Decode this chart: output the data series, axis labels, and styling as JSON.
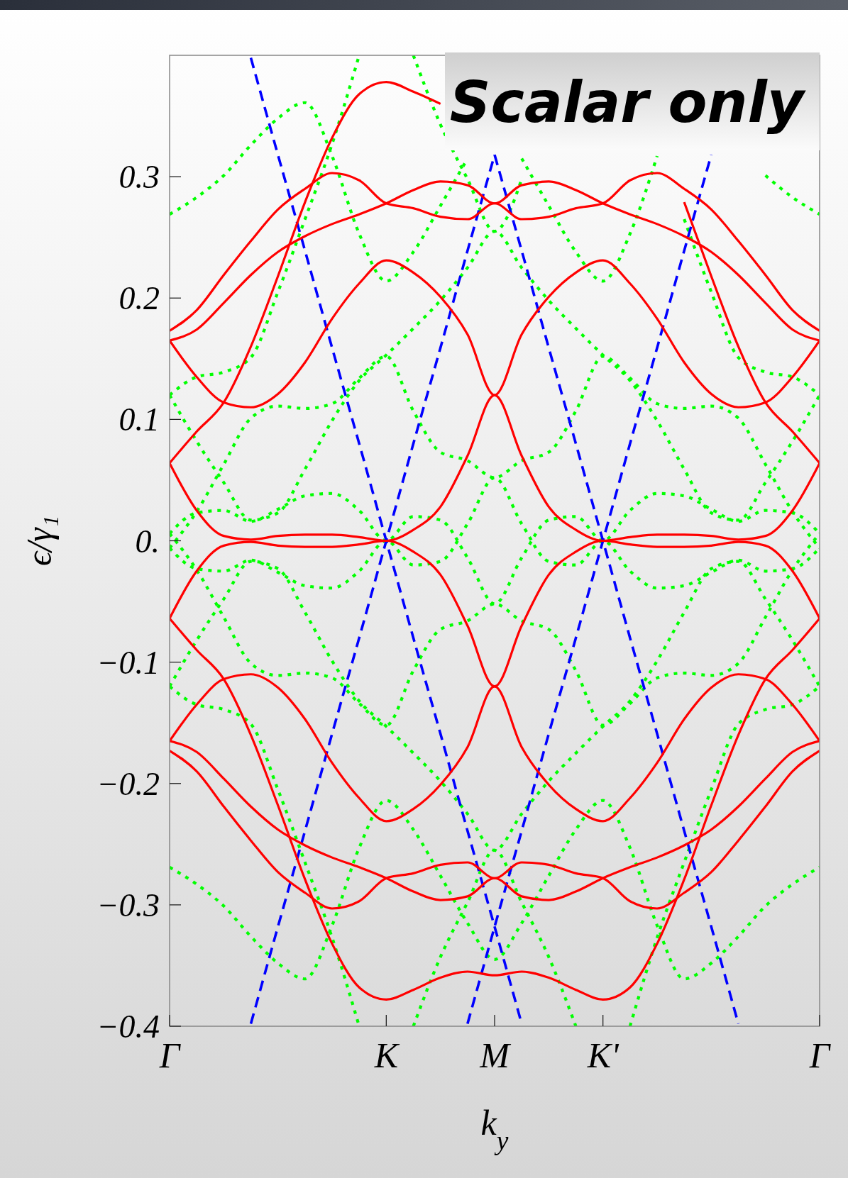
{
  "chart_data": {
    "type": "line",
    "title": "Scalar only",
    "xlabel": "k$_{y}$",
    "ylabel": "ϵ/γ₁",
    "categories": [
      "Γ",
      null,
      null,
      null,
      null,
      null,
      null,
      null,
      "K",
      null,
      null,
      null,
      "M",
      null,
      null,
      null,
      "K'",
      null,
      null,
      null,
      null,
      null,
      null,
      null,
      "Γ"
    ],
    "ylim": [
      -0.4,
      0.4
    ],
    "yticks": [
      {
        "value": -0.4,
        "label": "−0.4"
      },
      {
        "value": -0.3,
        "label": "−0.3"
      },
      {
        "value": -0.2,
        "label": "−0.2"
      },
      {
        "value": -0.1,
        "label": "−0.1"
      },
      {
        "value": 0,
        "label": "0."
      },
      0.3,
      0.2,
      0.1
    ],
    "series": [
      {
        "color": "#00ff00",
        "line_style": "dotted",
        "values": [
          0.269,
          0.283,
          0.301,
          0.326,
          0.348,
          0.361,
          0.317,
          0.253,
          0.214,
          0.238,
          0.276,
          0.315,
          null,
          0.315,
          0.276,
          0.238,
          0.214,
          0.253,
          0.317,
          null,
          null,
          null,
          0.301,
          0.283,
          0.269
        ]
      },
      {
        "color": "#00ff00",
        "line_style": "dotted",
        "values": [
          -0.269,
          -0.283,
          -0.301,
          -0.326,
          -0.348,
          -0.361,
          -0.317,
          -0.253,
          -0.214,
          -0.238,
          -0.276,
          -0.315,
          -0.345,
          -0.315,
          -0.276,
          -0.238,
          -0.214,
          -0.253,
          -0.317,
          -0.361,
          -0.348,
          -0.326,
          -0.301,
          -0.283,
          -0.269
        ]
      },
      {
        "color": "#00ff00",
        "line_style": "dotted",
        "values": [
          0.12,
          0.135,
          0.139,
          0.151,
          0.205,
          0.265,
          0.327,
          0.4,
          null,
          null,
          null,
          null,
          null,
          null,
          null,
          null,
          null,
          null,
          null,
          null,
          null,
          null,
          null,
          null,
          null
        ]
      },
      {
        "color": "#00ff00",
        "line_style": "dotted",
        "values": [
          null,
          null,
          null,
          null,
          null,
          null,
          null,
          null,
          null,
          null,
          null,
          null,
          null,
          null,
          null,
          null,
          null,
          null,
          null,
          0.265,
          0.205,
          0.151,
          0.139,
          0.135,
          0.12
        ]
      },
      {
        "color": "#00ff00",
        "line_style": "dotted",
        "values": [
          -0.12,
          -0.135,
          -0.139,
          -0.151,
          -0.205,
          -0.265,
          -0.327,
          -0.4,
          null,
          null,
          null,
          null,
          null,
          null,
          null,
          null,
          null,
          null,
          null,
          null,
          null,
          null,
          null,
          null,
          null
        ]
      },
      {
        "color": "#00ff00",
        "line_style": "dotted",
        "values": [
          null,
          null,
          null,
          null,
          null,
          null,
          null,
          null,
          null,
          null,
          null,
          null,
          null,
          null,
          null,
          null,
          null,
          -0.4,
          -0.327,
          -0.265,
          -0.205,
          -0.151,
          -0.139,
          -0.135,
          -0.12
        ]
      },
      {
        "color": "#00ff00",
        "line_style": "dotted",
        "values": [
          null,
          null,
          null,
          null,
          null,
          null,
          null,
          null,
          null,
          0.4,
          0.343,
          0.298,
          0.255,
          0.298,
          null,
          null,
          null,
          null,
          null,
          null,
          null,
          null,
          null,
          null,
          null
        ]
      },
      {
        "color": "#00ff00",
        "line_style": "dotted",
        "values": [
          null,
          null,
          null,
          null,
          null,
          null,
          null,
          null,
          null,
          -0.4,
          -0.343,
          -0.298,
          -0.255,
          -0.298,
          -0.343,
          -0.4,
          null,
          null,
          null,
          null,
          null,
          null,
          null,
          null,
          null
        ]
      },
      {
        "color": "#00ff00",
        "line_style": "dotted",
        "values": [
          -0.006,
          0.024,
          0.063,
          0.101,
          0.111,
          0.109,
          0.113,
          0.134,
          0.152,
          0.107,
          0.073,
          0.066,
          0.052,
          0.066,
          0.073,
          0.107,
          0.152,
          0.134,
          0.113,
          0.109,
          0.111,
          0.101,
          0.063,
          0.024,
          -0.006
        ]
      },
      {
        "color": "#00ff00",
        "line_style": "dotted",
        "values": [
          0.006,
          -0.024,
          -0.063,
          -0.101,
          -0.111,
          -0.109,
          -0.113,
          -0.134,
          -0.152,
          -0.107,
          -0.073,
          -0.066,
          -0.052,
          -0.066,
          -0.073,
          -0.107,
          -0.152,
          -0.134,
          -0.113,
          -0.109,
          -0.111,
          -0.101,
          -0.063,
          -0.024,
          0.006
        ]
      },
      {
        "color": "#00ff00",
        "line_style": "dotted",
        "values": [
          0.12,
          0.082,
          0.048,
          0.017,
          0.023,
          0.059,
          0.099,
          0.132,
          0.153,
          0.175,
          0.198,
          0.225,
          0.255,
          0.225,
          0.198,
          0.175,
          0.153,
          0.132,
          0.099,
          0.059,
          0.023,
          0.017,
          0.048,
          0.082,
          0.12
        ]
      },
      {
        "color": "#00ff00",
        "line_style": "dotted",
        "values": [
          -0.12,
          -0.082,
          -0.048,
          -0.017,
          -0.023,
          -0.059,
          -0.099,
          -0.132,
          -0.153,
          -0.175,
          -0.198,
          -0.225,
          -0.255,
          -0.225,
          -0.198,
          -0.175,
          -0.153,
          -0.132,
          -0.099,
          -0.059,
          -0.023,
          -0.017,
          -0.048,
          -0.082,
          -0.12
        ]
      },
      {
        "color": "#00ff00",
        "line_style": "dotted",
        "values": [
          0.006,
          0.023,
          0.025,
          0.016,
          0.026,
          0.037,
          0.039,
          0.025,
          0,
          0.02,
          0.017,
          -0.014,
          -0.052,
          -0.014,
          0.017,
          0.02,
          0,
          0.025,
          0.039,
          0.037,
          0.026,
          0.016,
          0.025,
          0.023,
          0.006
        ]
      },
      {
        "color": "#00ff00",
        "line_style": "dotted",
        "values": [
          -0.006,
          -0.023,
          -0.025,
          -0.016,
          -0.026,
          -0.037,
          -0.039,
          -0.025,
          0,
          -0.02,
          -0.017,
          0.014,
          0.052,
          0.014,
          -0.017,
          -0.02,
          0,
          -0.025,
          -0.039,
          -0.037,
          -0.026,
          -0.016,
          -0.025,
          -0.023,
          -0.006
        ]
      },
      {
        "color": "#0000ff",
        "line_style": "dashed",
        "values": [
          null,
          null,
          null,
          0.398,
          0.318,
          0.239,
          0.159,
          0.08,
          0,
          -0.08,
          -0.159,
          -0.239,
          -0.318,
          -0.398,
          null,
          null,
          null,
          null,
          null,
          null,
          null,
          null,
          null,
          null,
          null
        ]
      },
      {
        "color": "#0000ff",
        "line_style": "dashed",
        "values": [
          null,
          null,
          null,
          -0.398,
          -0.318,
          -0.239,
          -0.159,
          -0.08,
          0,
          0.08,
          0.159,
          0.239,
          0.318,
          null,
          null,
          null,
          null,
          null,
          null,
          null,
          null,
          null,
          null,
          null,
          null
        ]
      },
      {
        "color": "#0000ff",
        "line_style": "dashed",
        "values": [
          null,
          null,
          null,
          null,
          null,
          null,
          null,
          null,
          null,
          null,
          null,
          null,
          0.318,
          0.239,
          0.159,
          0.08,
          0,
          -0.08,
          -0.159,
          -0.239,
          -0.318,
          -0.398,
          null,
          null,
          null
        ]
      },
      {
        "color": "#0000ff",
        "line_style": "dashed",
        "values": [
          null,
          null,
          null,
          null,
          null,
          null,
          null,
          null,
          null,
          null,
          null,
          -0.398,
          -0.318,
          -0.239,
          -0.159,
          -0.08,
          0,
          0.08,
          0.159,
          0.239,
          0.318,
          null,
          null,
          null,
          null
        ]
      },
      {
        "color": "#ff0000",
        "line_style": "solid",
        "values": [
          0.165,
          0.135,
          0.114,
          0.11,
          0.121,
          0.147,
          0.183,
          0.212,
          0.231,
          0.221,
          0.201,
          0.17,
          0.12,
          0.17,
          0.201,
          0.221,
          0.231,
          0.212,
          0.183,
          0.147,
          0.121,
          0.11,
          0.114,
          0.135,
          0.165
        ]
      },
      {
        "color": "#ff0000",
        "line_style": "solid",
        "values": [
          -0.165,
          -0.135,
          -0.114,
          -0.11,
          -0.121,
          -0.147,
          -0.183,
          -0.212,
          -0.231,
          -0.221,
          -0.201,
          -0.17,
          -0.12,
          -0.17,
          -0.201,
          -0.221,
          -0.231,
          -0.212,
          -0.183,
          -0.147,
          -0.121,
          -0.11,
          -0.114,
          -0.135,
          -0.165
        ]
      },
      {
        "color": "#ff0000",
        "line_style": "solid",
        "values": [
          0.064,
          0.025,
          0.004,
          0.001,
          0.004,
          0.005,
          0.005,
          0.003,
          0,
          0.009,
          0.028,
          0.07,
          0.12,
          0.07,
          0.028,
          0.009,
          0,
          0.003,
          0.005,
          0.005,
          0.004,
          0.001,
          0.004,
          0.025,
          0.064
        ]
      },
      {
        "color": "#ff0000",
        "line_style": "solid",
        "values": [
          -0.064,
          -0.025,
          -0.004,
          -0.001,
          -0.004,
          -0.005,
          -0.005,
          -0.003,
          0,
          -0.009,
          -0.028,
          -0.07,
          -0.12,
          -0.07,
          -0.028,
          -0.009,
          0,
          -0.003,
          -0.005,
          -0.005,
          -0.004,
          -0.001,
          -0.004,
          -0.025,
          -0.064
        ]
      },
      {
        "color": "#ff0000",
        "line_style": "solid",
        "values": [
          0.064,
          0.09,
          0.114,
          0.16,
          0.218,
          0.279,
          0.332,
          0.368,
          0.378,
          0.37,
          0.36,
          null,
          null,
          null,
          null,
          null,
          null,
          null,
          null,
          0.279,
          0.218,
          0.16,
          0.114,
          0.09,
          0.064
        ]
      },
      {
        "color": "#ff0000",
        "line_style": "solid",
        "values": [
          -0.064,
          -0.09,
          -0.114,
          -0.16,
          -0.218,
          -0.279,
          -0.332,
          -0.368,
          -0.378,
          -0.37,
          -0.36,
          -0.355,
          -0.358,
          -0.355,
          -0.36,
          -0.37,
          -0.378,
          -0.368,
          -0.332,
          -0.279,
          -0.218,
          -0.16,
          -0.114,
          -0.09,
          -0.064
        ]
      },
      {
        "color": "#ff0000",
        "line_style": "solid",
        "values": [
          0.173,
          0.19,
          0.219,
          0.247,
          0.273,
          0.29,
          0.303,
          0.297,
          0.278,
          0.274,
          0.267,
          0.265,
          0.278,
          0.265,
          0.267,
          0.274,
          0.278,
          0.297,
          0.303,
          0.29,
          0.273,
          0.247,
          0.219,
          0.19,
          0.173
        ]
      },
      {
        "color": "#ff0000",
        "line_style": "solid",
        "values": [
          -0.173,
          -0.19,
          -0.219,
          -0.247,
          -0.273,
          -0.29,
          -0.303,
          -0.297,
          -0.278,
          -0.274,
          -0.267,
          -0.265,
          -0.278,
          -0.265,
          -0.267,
          -0.274,
          -0.278,
          -0.297,
          -0.303,
          -0.29,
          -0.273,
          -0.247,
          -0.219,
          -0.19,
          -0.173
        ]
      },
      {
        "color": "#ff0000",
        "line_style": "solid",
        "values": [
          0.165,
          0.174,
          0.196,
          0.219,
          0.238,
          0.251,
          0.261,
          0.269,
          0.278,
          0.289,
          0.296,
          0.293,
          0.278,
          0.293,
          0.296,
          0.289,
          0.278,
          0.269,
          0.261,
          0.251,
          0.238,
          0.219,
          0.196,
          0.174,
          0.165
        ]
      },
      {
        "color": "#ff0000",
        "line_style": "solid",
        "values": [
          -0.165,
          -0.174,
          -0.196,
          -0.219,
          -0.238,
          -0.251,
          -0.261,
          -0.269,
          -0.278,
          -0.289,
          -0.296,
          -0.293,
          -0.278,
          -0.293,
          -0.296,
          -0.289,
          -0.278,
          -0.269,
          -0.261,
          -0.251,
          -0.238,
          -0.219,
          -0.196,
          -0.174,
          -0.165
        ]
      }
    ]
  }
}
